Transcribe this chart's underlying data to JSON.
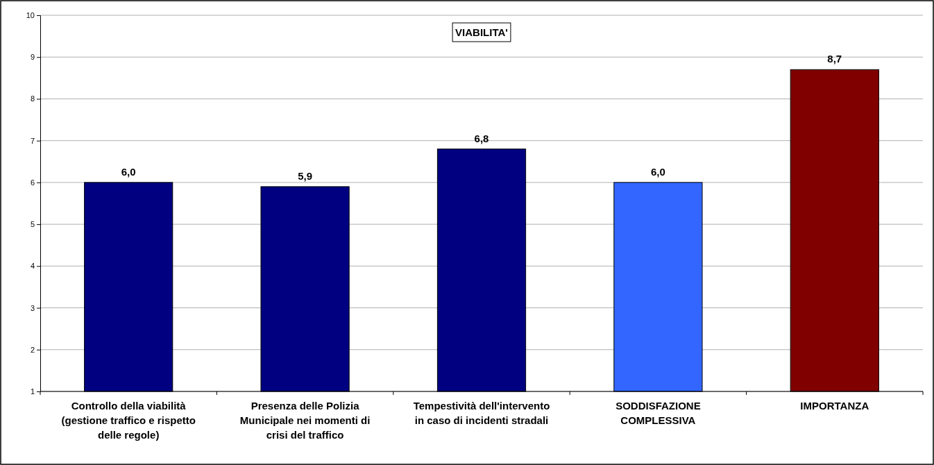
{
  "chart_data": {
    "type": "bar",
    "title": "VIABILITA'",
    "categories": [
      "Controllo della viabilità (gestione traffico e rispetto delle regole)",
      "Presenza delle Polizia Municipale nei momenti di crisi del traffico",
      "Tempestività dell'intervento in caso di incidenti stradali",
      "SODDISFAZIONE COMPLESSIVA",
      "IMPORTANZA"
    ],
    "values": [
      6.0,
      5.9,
      6.8,
      6.0,
      8.7
    ],
    "colors": [
      "#000080",
      "#000080",
      "#000080",
      "#3366ff",
      "#800000"
    ],
    "value_labels": [
      "6,0",
      "5,9",
      "6,8",
      "6,0",
      "8,7"
    ],
    "ylim": [
      1,
      10
    ],
    "yticks": [
      1,
      2,
      3,
      4,
      5,
      6,
      7,
      8,
      9,
      10
    ],
    "grid": "y"
  }
}
